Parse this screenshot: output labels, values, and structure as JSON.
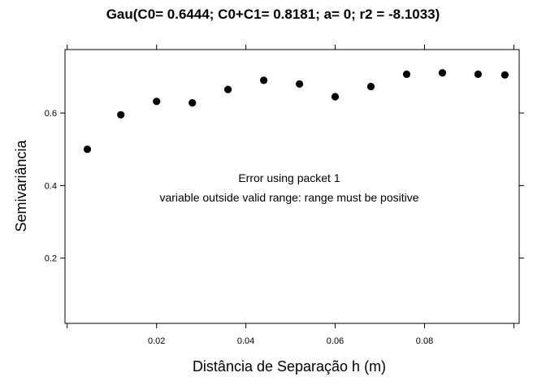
{
  "chart_data": {
    "type": "scatter",
    "title": "Gau(C0= 0.6444; C0+C1= 0.8181; a= 0; r2 = -8.1033)",
    "xlabel": "Distância de Separação h (m)",
    "ylabel": "Semivariância",
    "xlim": [
      -0.0005,
      0.1012
    ],
    "ylim": [
      0.02,
      0.775
    ],
    "x_ticks": [
      0.02,
      0.04,
      0.06,
      0.08
    ],
    "x_tick_labels": [
      "0.02",
      "0.04",
      "0.06",
      "0.08"
    ],
    "y_ticks": [
      0.2,
      0.4,
      0.6
    ],
    "y_tick_labels": [
      "0.2",
      "0.4",
      "0.6"
    ],
    "grid": false,
    "points": [
      {
        "x": 0.0045,
        "y": 0.5
      },
      {
        "x": 0.012,
        "y": 0.595
      },
      {
        "x": 0.02,
        "y": 0.632
      },
      {
        "x": 0.028,
        "y": 0.628
      },
      {
        "x": 0.036,
        "y": 0.665
      },
      {
        "x": 0.044,
        "y": 0.69
      },
      {
        "x": 0.052,
        "y": 0.68
      },
      {
        "x": 0.06,
        "y": 0.645
      },
      {
        "x": 0.068,
        "y": 0.673
      },
      {
        "x": 0.076,
        "y": 0.707
      },
      {
        "x": 0.084,
        "y": 0.711
      },
      {
        "x": 0.092,
        "y": 0.707
      },
      {
        "x": 0.098,
        "y": 0.705
      }
    ],
    "annotations": [
      "Error using packet 1",
      "variable outside valid range: range must be positive"
    ]
  }
}
